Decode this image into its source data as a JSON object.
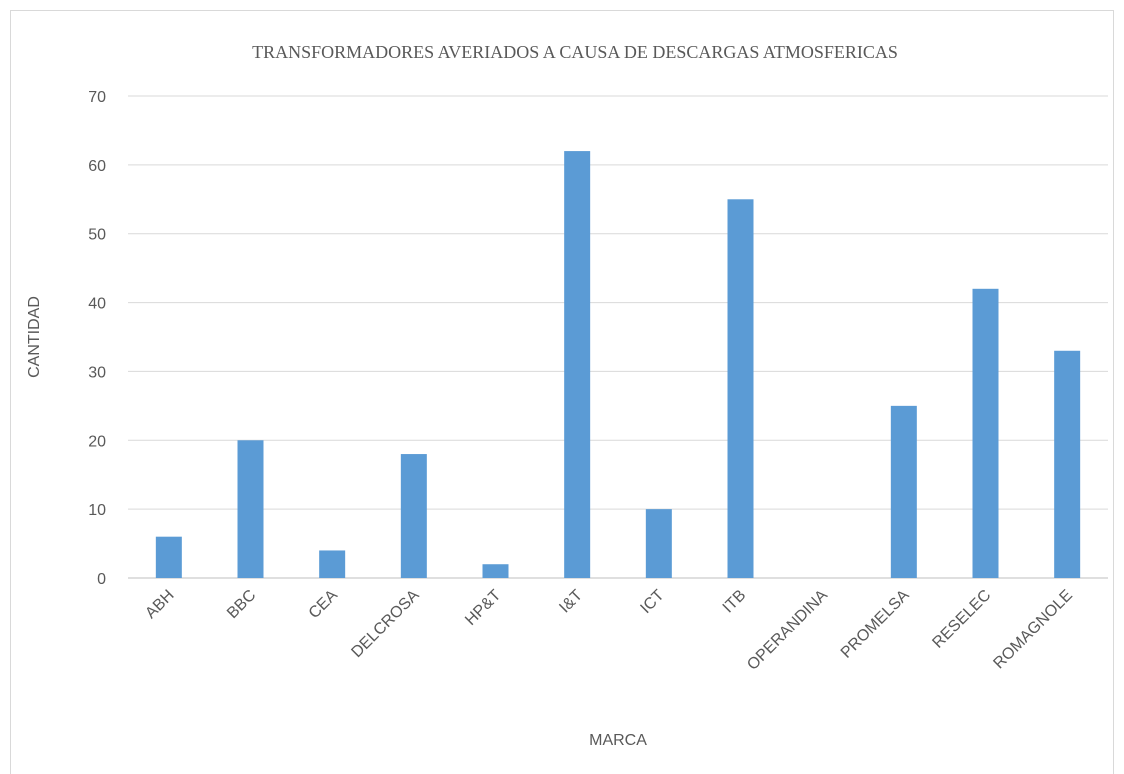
{
  "chart_data": {
    "type": "bar",
    "title": "TRANSFORMADORES AVERIADOS A CAUSA DE DESCARGAS ATMOSFERICAS",
    "x_label": "MARCA",
    "y_label": "CANTIDAD",
    "categories": [
      "ABH",
      "BBC",
      "CEA",
      "DELCROSA",
      "HP&T",
      "I&T",
      "ICT",
      "ITB",
      "OPERANDINA",
      "PROMELSA",
      "RESELEC",
      "ROMAGNOLE"
    ],
    "values": [
      6,
      20,
      4,
      18,
      2,
      62,
      10,
      55,
      0,
      25,
      42,
      33
    ],
    "color": "#5b9bd5",
    "ylim": [
      0,
      70
    ],
    "yticks": [
      0,
      10,
      20,
      30,
      40,
      50,
      60,
      70
    ],
    "grid": true
  }
}
